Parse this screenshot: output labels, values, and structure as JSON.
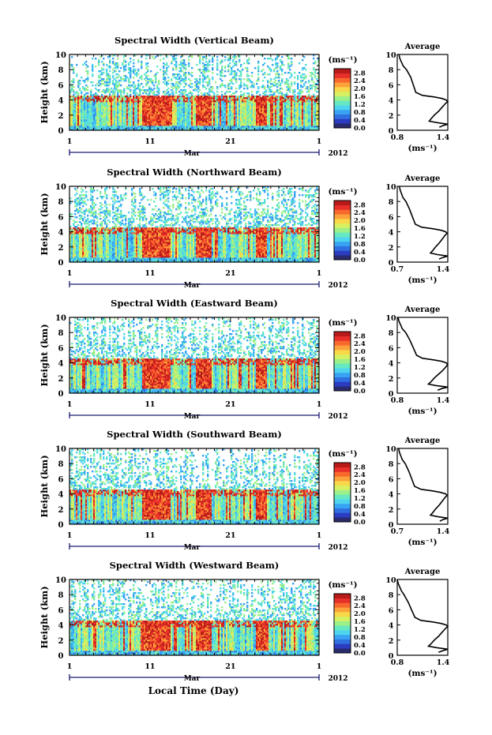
{
  "figure": {
    "xaxis_title": "Local Time (Day)"
  },
  "colorbar": {
    "unit": "(ms⁻¹)",
    "colors": [
      "#2a2a6e",
      "#2b3cc0",
      "#2f6fe0",
      "#38a3f2",
      "#4fd4ee",
      "#66e8c2",
      "#9bf08a",
      "#d6f062",
      "#f8d748",
      "#fba23a",
      "#f8682d",
      "#e8302a",
      "#b81a1a"
    ]
  },
  "chart_data": [
    {
      "type": "heatmap",
      "title": "Spectral Width (Vertical Beam)",
      "ylabel": "Height (km)",
      "xlabel": "Mar",
      "year": "2012",
      "x_ticks": [
        "1",
        "11",
        "21",
        "1"
      ],
      "y_ticks": [
        0,
        2,
        4,
        6,
        8,
        10
      ],
      "ylim": [
        0,
        10
      ],
      "colorbar_ticks": [
        "0.0",
        "0.4",
        "0.8",
        "1.2",
        "1.6",
        "2.0",
        "2.4",
        "2.8"
      ],
      "profile": {
        "title": "Average",
        "x_ticks": [
          "0.8",
          "1.4"
        ],
        "xlim": [
          0.8,
          1.4
        ],
        "xlabel": "(ms⁻¹)",
        "heights": [
          0.4,
          0.6,
          0.8,
          1.0,
          1.2,
          1.5,
          2.0,
          2.5,
          3.0,
          3.5,
          3.8,
          4.0,
          4.2,
          4.4,
          4.6,
          5.0,
          6.0,
          7.0,
          8.0,
          8.5,
          9.0,
          9.5,
          10.0
        ],
        "values": [
          1.3,
          1.34,
          1.4,
          1.28,
          1.18,
          1.2,
          1.24,
          1.29,
          1.33,
          1.37,
          1.4,
          1.38,
          1.33,
          1.24,
          1.1,
          1.02,
          0.99,
          0.96,
          0.91,
          0.87,
          0.85,
          0.83,
          0.82
        ]
      }
    },
    {
      "type": "heatmap",
      "title": "Spectral Width (Northward Beam)",
      "ylabel": "Height (km)",
      "xlabel": "Mar",
      "year": "2012",
      "x_ticks": [
        "1",
        "11",
        "21",
        "1"
      ],
      "y_ticks": [
        0,
        2,
        4,
        6,
        8,
        10
      ],
      "ylim": [
        0,
        10
      ],
      "colorbar_ticks": [
        "0.0",
        "0.4",
        "0.8",
        "1.2",
        "1.6",
        "2.0",
        "2.4",
        "2.8"
      ],
      "profile": {
        "title": "Average",
        "x_ticks": [
          "0.7",
          "1.4"
        ],
        "xlim": [
          0.7,
          1.4
        ],
        "xlabel": "(ms⁻¹)",
        "heights": [
          0.4,
          0.6,
          0.8,
          1.0,
          1.2,
          1.5,
          2.0,
          2.5,
          3.0,
          3.5,
          3.8,
          4.0,
          4.2,
          4.4,
          4.6,
          5.0,
          6.0,
          7.0,
          8.0,
          8.5,
          9.0,
          9.5,
          10.0
        ],
        "values": [
          1.28,
          1.33,
          1.4,
          1.25,
          1.16,
          1.19,
          1.23,
          1.28,
          1.32,
          1.36,
          1.39,
          1.37,
          1.31,
          1.2,
          1.04,
          0.95,
          0.91,
          0.87,
          0.82,
          0.78,
          0.76,
          0.74,
          0.73
        ]
      }
    },
    {
      "type": "heatmap",
      "title": "Spectral Width (Eastward Beam)",
      "ylabel": "Height (km)",
      "xlabel": "Mar",
      "year": "2012",
      "x_ticks": [
        "1",
        "11",
        "21",
        "1"
      ],
      "y_ticks": [
        0,
        2,
        4,
        6,
        8,
        10
      ],
      "ylim": [
        0,
        10
      ],
      "colorbar_ticks": [
        "0.0",
        "0.4",
        "0.8",
        "1.2",
        "1.6",
        "2.0",
        "2.4",
        "2.8"
      ],
      "profile": {
        "title": "Average",
        "x_ticks": [
          "0.8",
          "1.4"
        ],
        "xlim": [
          0.8,
          1.4
        ],
        "xlabel": "(ms⁻¹)",
        "heights": [
          0.4,
          0.6,
          0.8,
          1.0,
          1.2,
          1.5,
          2.0,
          2.5,
          3.0,
          3.5,
          3.8,
          4.0,
          4.2,
          4.4,
          4.6,
          5.0,
          6.0,
          7.0,
          8.0,
          8.5,
          9.0,
          9.5,
          10.0
        ],
        "values": [
          1.28,
          1.33,
          1.4,
          1.26,
          1.17,
          1.2,
          1.24,
          1.29,
          1.34,
          1.38,
          1.4,
          1.38,
          1.33,
          1.23,
          1.1,
          1.03,
          0.99,
          0.95,
          0.9,
          0.86,
          0.84,
          0.82,
          0.81
        ]
      }
    },
    {
      "type": "heatmap",
      "title": "Spectral Width (Southward Beam)",
      "ylabel": "Height (km)",
      "xlabel": "Mar",
      "year": "2012",
      "x_ticks": [
        "1",
        "11",
        "21",
        "1"
      ],
      "y_ticks": [
        0,
        2,
        4,
        6,
        8,
        10
      ],
      "ylim": [
        0,
        10
      ],
      "colorbar_ticks": [
        "0.0",
        "0.4",
        "0.8",
        "1.2",
        "1.6",
        "2.0",
        "2.4",
        "2.8"
      ],
      "profile": {
        "title": "Average",
        "x_ticks": [
          "0.7",
          "1.4"
        ],
        "xlim": [
          0.7,
          1.4
        ],
        "xlabel": "(ms⁻¹)",
        "heights": [
          0.4,
          0.6,
          0.8,
          1.0,
          1.2,
          1.5,
          2.0,
          2.5,
          3.0,
          3.5,
          3.8,
          4.0,
          4.2,
          4.4,
          4.6,
          5.0,
          6.0,
          7.0,
          8.0,
          8.5,
          9.0,
          9.5,
          10.0
        ],
        "values": [
          1.29,
          1.33,
          1.4,
          1.26,
          1.16,
          1.19,
          1.23,
          1.28,
          1.32,
          1.36,
          1.39,
          1.37,
          1.3,
          1.19,
          1.03,
          0.94,
          0.9,
          0.86,
          0.81,
          0.77,
          0.75,
          0.73,
          0.72
        ]
      }
    },
    {
      "type": "heatmap",
      "title": "Spectral Width (Westward Beam)",
      "ylabel": "Height (km)",
      "xlabel": "Mar",
      "year": "2012",
      "x_ticks": [
        "1",
        "11",
        "21",
        "1"
      ],
      "y_ticks": [
        0,
        2,
        4,
        6,
        8,
        10
      ],
      "ylim": [
        0,
        10
      ],
      "colorbar_ticks": [
        "0.0",
        "0.4",
        "0.8",
        "1.2",
        "1.6",
        "2.0",
        "2.4",
        "2.8"
      ],
      "profile": {
        "title": "Average",
        "x_ticks": [
          "0.8",
          "1.4"
        ],
        "xlim": [
          0.8,
          1.4
        ],
        "xlabel": "(ms⁻¹)",
        "heights": [
          0.4,
          0.6,
          0.8,
          1.0,
          1.2,
          1.5,
          2.0,
          2.5,
          3.0,
          3.5,
          3.8,
          4.0,
          4.2,
          4.4,
          4.6,
          5.0,
          6.0,
          7.0,
          8.0,
          8.5,
          9.0,
          9.5,
          10.0
        ],
        "values": [
          1.29,
          1.34,
          1.4,
          1.27,
          1.17,
          1.2,
          1.24,
          1.29,
          1.33,
          1.37,
          1.4,
          1.38,
          1.32,
          1.22,
          1.08,
          1.01,
          0.97,
          0.93,
          0.88,
          0.85,
          0.83,
          0.81,
          0.8
        ]
      }
    }
  ]
}
